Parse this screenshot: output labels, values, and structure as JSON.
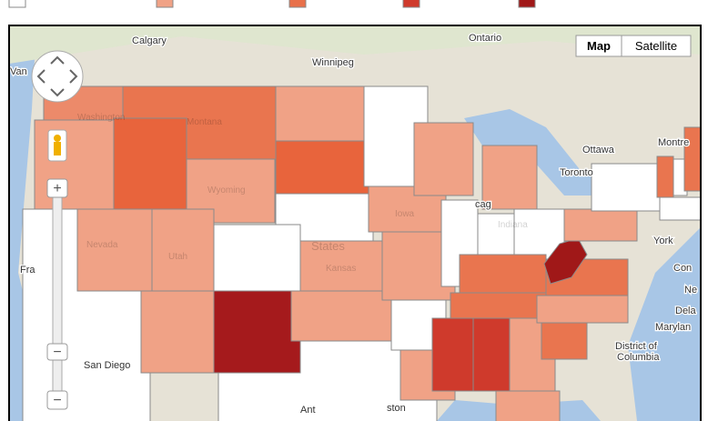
{
  "controls": {
    "map": "Map",
    "satellite": "Satellite",
    "zoom_in": "+",
    "zoom_out": "−"
  },
  "place_labels": [
    "Calgary",
    "Winnipeg",
    "Ontario",
    "Ottawa",
    "Montre",
    "Toronto",
    "Van",
    "Fra",
    "San Diego",
    "York",
    "Con",
    "Ne",
    "Dela",
    "Marylan",
    "District of",
    "Columbia",
    "Ant",
    "ston",
    "cag"
  ],
  "state_labels": [
    "Washington",
    "Montana",
    "Wyoming",
    "Nevada",
    "Utah",
    "Kansas",
    "Iowa",
    "Indiana",
    "States"
  ]
}
